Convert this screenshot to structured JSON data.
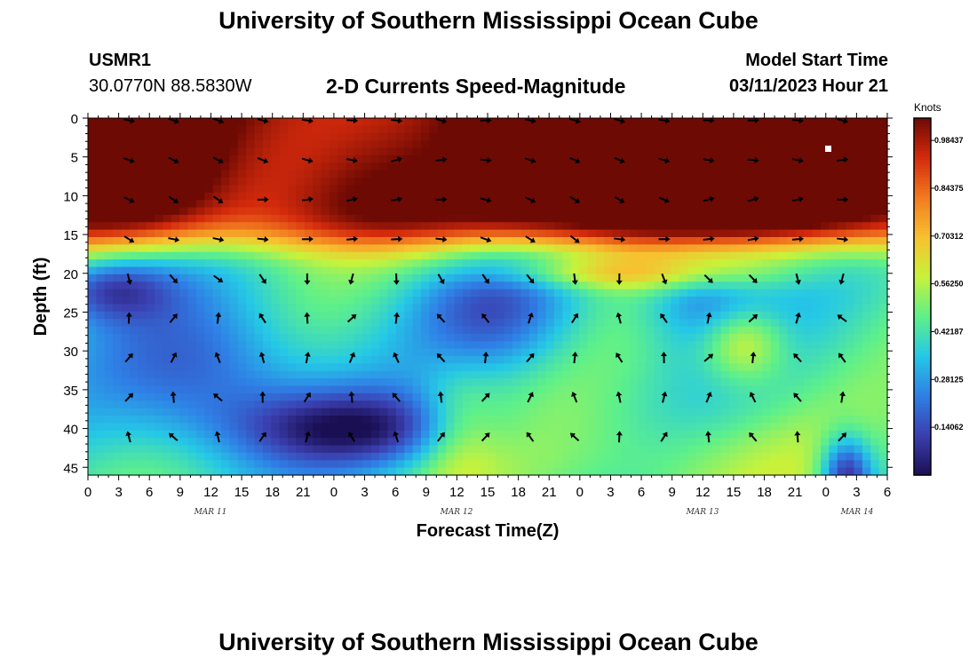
{
  "header": {
    "title": "University of Southern Mississippi Ocean Cube",
    "station_id": "USMR1",
    "station_coords": "30.0770N  88.5830W",
    "chart_title": "2-D Currents Speed-Magnitude",
    "model_start_label": "Model Start Time",
    "model_start_value": "03/11/2023 Hour 21"
  },
  "footer": {
    "title": "University of Southern Mississippi Ocean Cube"
  },
  "chart_data": {
    "type": "heatmap",
    "title": "2-D Currents Speed-Magnitude",
    "xlabel": "Forecast Time(Z)",
    "ylabel": "Depth (ft)",
    "x_ticks": [
      "0",
      "3",
      "6",
      "9",
      "12",
      "15",
      "18",
      "21",
      "0",
      "3",
      "6",
      "9",
      "12",
      "15",
      "18",
      "21",
      "0",
      "3",
      "6",
      "9",
      "12",
      "15",
      "18",
      "21",
      "0",
      "3",
      "6"
    ],
    "date_labels": [
      "MAR 11",
      "MAR 12",
      "MAR 13",
      "MAR 14"
    ],
    "y_ticks": [
      0,
      5,
      10,
      15,
      20,
      25,
      30,
      35,
      40,
      45
    ],
    "ylim": [
      0,
      46
    ],
    "colorbar": {
      "label": "Knots",
      "ticks": [
        "0.98437",
        "0.84375",
        "0.70312",
        "0.56250",
        "0.42187",
        "0.28125",
        "0.14062"
      ],
      "vmin": 0,
      "vmax": 1.05,
      "colors": [
        "#1b0f54",
        "#3b3fb0",
        "#2f7fe6",
        "#25c8e6",
        "#5ef08a",
        "#c8f23a",
        "#f7c12f",
        "#f27a1f",
        "#d42a0c",
        "#6e0a04"
      ]
    },
    "grid": false,
    "vector_field": "arrows show current direction at each time/depth point"
  }
}
